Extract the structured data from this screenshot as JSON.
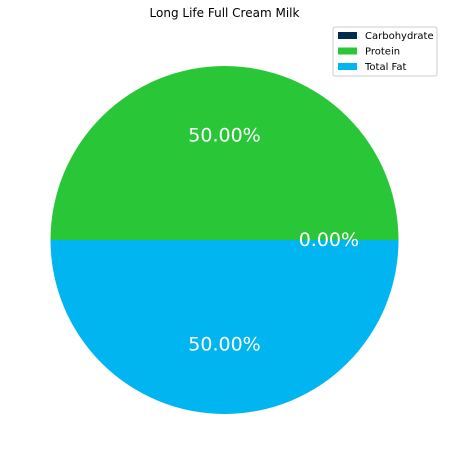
{
  "chart_data": {
    "type": "pie",
    "title": "Long Life Full Cream Milk",
    "categories": [
      "Carbohydrate",
      "Protein",
      "Total Fat"
    ],
    "values": [
      0.0,
      50.0,
      50.0
    ],
    "labels": [
      "0.00%",
      "50.00%",
      "50.00%"
    ],
    "colors": [
      "#002c4f",
      "#29c737",
      "#00b5f0"
    ],
    "legend": {
      "placement": "top-right",
      "entries": [
        "Carbohydrate",
        "Protein",
        "Total Fat"
      ]
    }
  }
}
